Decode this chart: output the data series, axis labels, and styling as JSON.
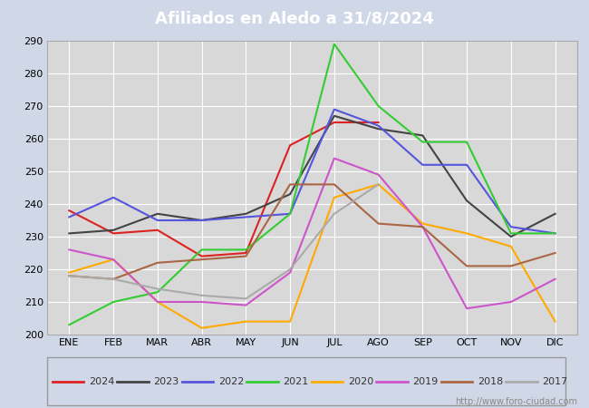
{
  "title": "Afiliados en Aledo a 31/8/2024",
  "months": [
    "ENE",
    "FEB",
    "MAR",
    "ABR",
    "MAY",
    "JUN",
    "JUL",
    "AGO",
    "SEP",
    "OCT",
    "NOV",
    "DIC"
  ],
  "ylim": [
    200,
    290
  ],
  "yticks": [
    200,
    210,
    220,
    230,
    240,
    250,
    260,
    270,
    280,
    290
  ],
  "series": {
    "2024": {
      "color": "#dd2222",
      "data": [
        238,
        231,
        232,
        224,
        225,
        258,
        265,
        265,
        null,
        null,
        null,
        null
      ]
    },
    "2023": {
      "color": "#444444",
      "data": [
        231,
        232,
        237,
        235,
        237,
        243,
        267,
        263,
        261,
        241,
        230,
        237
      ]
    },
    "2022": {
      "color": "#5555dd",
      "data": [
        236,
        242,
        235,
        235,
        236,
        237,
        269,
        264,
        252,
        252,
        233,
        231
      ]
    },
    "2021": {
      "color": "#33cc33",
      "data": [
        203,
        210,
        213,
        226,
        226,
        237,
        289,
        270,
        259,
        259,
        231,
        231
      ]
    },
    "2020": {
      "color": "#ffaa00",
      "data": [
        219,
        223,
        210,
        202,
        204,
        204,
        242,
        246,
        234,
        231,
        227,
        204
      ]
    },
    "2019": {
      "color": "#cc55cc",
      "data": [
        226,
        223,
        210,
        210,
        209,
        219,
        254,
        249,
        233,
        208,
        210,
        217
      ]
    },
    "2018": {
      "color": "#aa6644",
      "data": [
        218,
        217,
        222,
        223,
        224,
        246,
        246,
        234,
        233,
        221,
        221,
        225
      ]
    },
    "2017": {
      "color": "#aaaaaa",
      "data": [
        218,
        217,
        214,
        212,
        211,
        220,
        237,
        246,
        null,
        null,
        null,
        null
      ]
    }
  },
  "legend_order": [
    "2024",
    "2023",
    "2022",
    "2021",
    "2020",
    "2019",
    "2018",
    "2017"
  ],
  "watermark": "http://www.foro-ciudad.com",
  "outer_bg": "#d0d8e8",
  "plot_bg": "#d8d8d8",
  "grid_color": "#ffffff",
  "title_bg": "#5577aa",
  "title_fg": "#ffffff"
}
